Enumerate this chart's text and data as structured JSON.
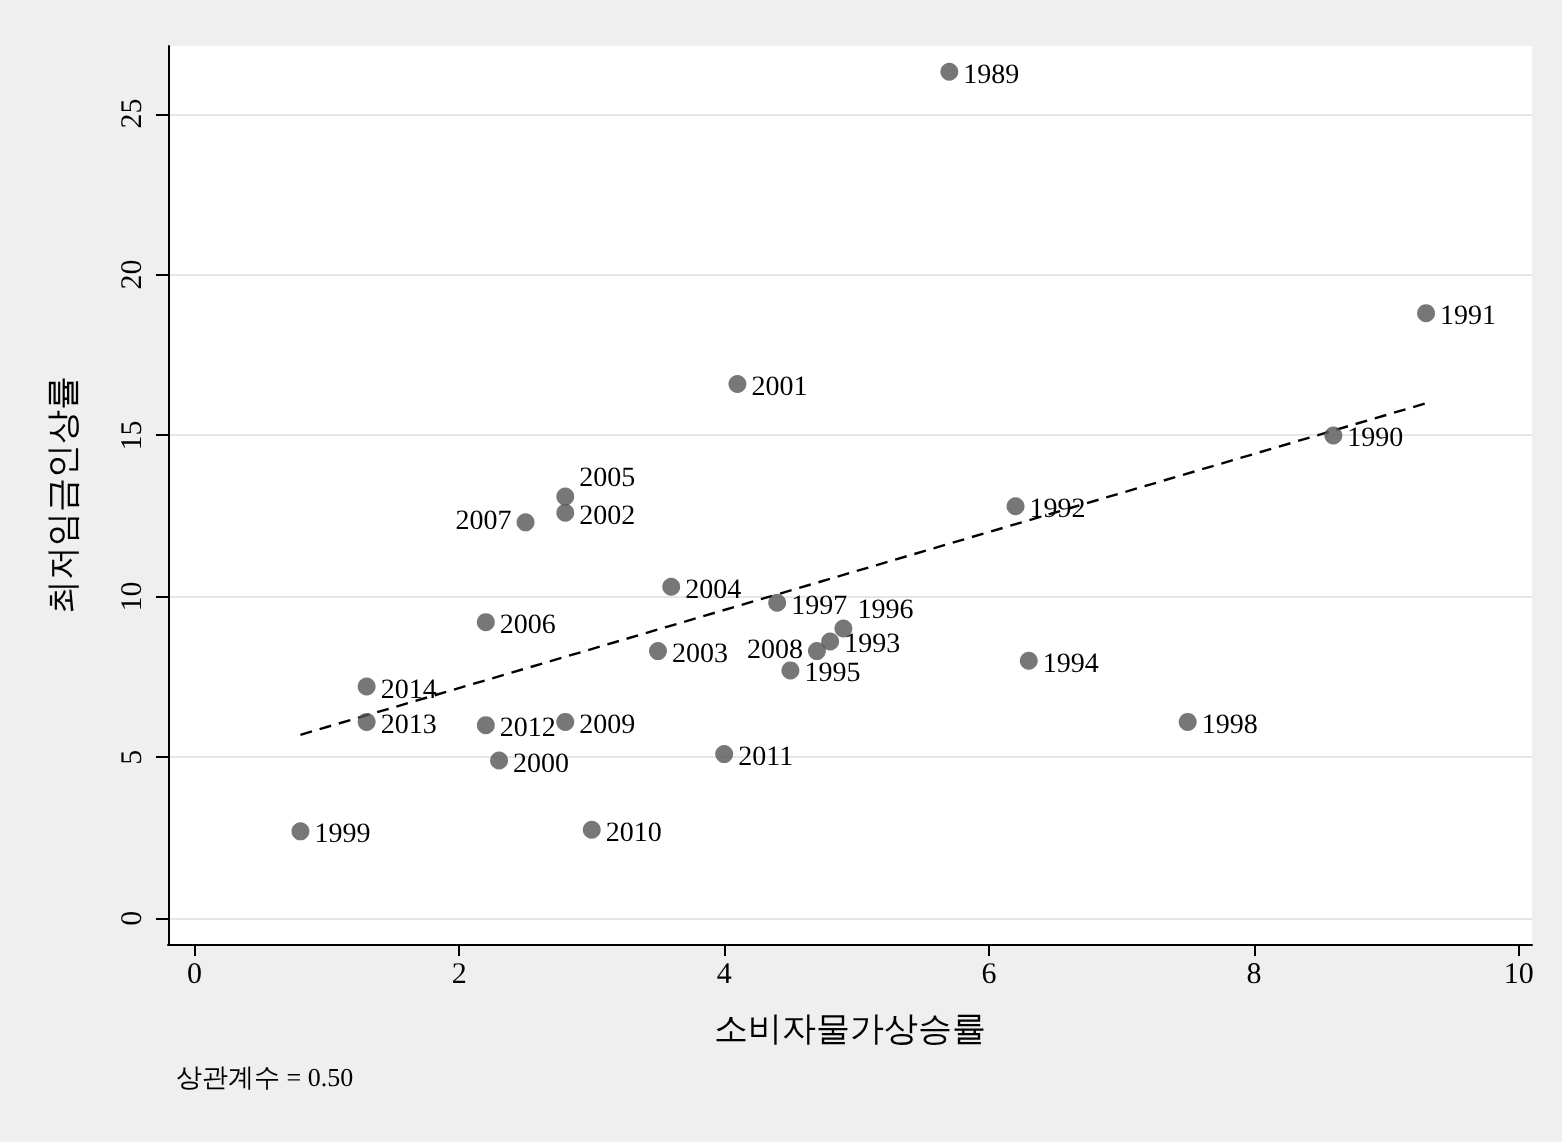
{
  "chart_data": {
    "type": "scatter",
    "xlabel": "소비자물가상승률",
    "ylabel": "최저임금인상률",
    "x": [
      5.7,
      8.6,
      9.3,
      6.2,
      4.8,
      6.3,
      4.5,
      4.9,
      4.4,
      7.5,
      0.8,
      2.3,
      4.1,
      2.8,
      3.5,
      3.6,
      2.8,
      2.2,
      2.5,
      4.7,
      2.8,
      3.0,
      4.0,
      2.2,
      1.3,
      1.3
    ],
    "series": [
      {
        "color": "#555555",
        "values": [
          26.3,
          15.0,
          18.8,
          12.8,
          8.6,
          8.0,
          7.7,
          9.0,
          9.8,
          6.1,
          2.7,
          4.9,
          16.6,
          12.6,
          8.3,
          10.3,
          13.1,
          9.2,
          12.3,
          8.3,
          6.1,
          2.75,
          5.1,
          6.0,
          6.1,
          7.2
        ]
      },
      {
        "type": "line",
        "color": "#000000",
        "line_style": "dashed",
        "marker": "none",
        "x": [
          0.8,
          9.3
        ],
        "values": [
          5.7,
          16.0
        ]
      }
    ],
    "annotations": [
      {
        "text": "1989",
        "x": 5.7,
        "y": 26.3
      },
      {
        "text": "1990",
        "x": 8.6,
        "y": 15.0
      },
      {
        "text": "1991",
        "x": 9.3,
        "y": 18.8
      },
      {
        "text": "1992",
        "x": 6.2,
        "y": 12.8
      },
      {
        "text": "1993",
        "x": 4.8,
        "y": 8.6
      },
      {
        "text": "1994",
        "x": 6.3,
        "y": 8.0
      },
      {
        "text": "1995",
        "x": 4.5,
        "y": 7.7
      },
      {
        "text": "1996",
        "x": 4.9,
        "y": 9.0
      },
      {
        "text": "1997",
        "x": 4.4,
        "y": 9.8
      },
      {
        "text": "1998",
        "x": 7.5,
        "y": 6.1
      },
      {
        "text": "1999",
        "x": 0.8,
        "y": 2.7
      },
      {
        "text": "2000",
        "x": 2.3,
        "y": 4.9
      },
      {
        "text": "2001",
        "x": 4.1,
        "y": 16.6
      },
      {
        "text": "2002",
        "x": 2.8,
        "y": 12.6
      },
      {
        "text": "2003",
        "x": 3.5,
        "y": 8.3
      },
      {
        "text": "2004",
        "x": 3.6,
        "y": 10.3
      },
      {
        "text": "2005",
        "x": 2.8,
        "y": 13.1
      },
      {
        "text": "2006",
        "x": 2.2,
        "y": 9.2
      },
      {
        "text": "2007",
        "x": 2.5,
        "y": 12.3
      },
      {
        "text": "2008",
        "x": 4.7,
        "y": 8.3
      },
      {
        "text": "2009",
        "x": 2.8,
        "y": 6.1
      },
      {
        "text": "2010",
        "x": 3.0,
        "y": 2.75
      },
      {
        "text": "2011",
        "x": 4.0,
        "y": 5.1
      },
      {
        "text": "2012",
        "x": 2.2,
        "y": 6.0
      },
      {
        "text": "2013",
        "x": 1.3,
        "y": 6.1
      },
      {
        "text": "2014",
        "x": 1.3,
        "y": 7.2
      },
      "상관계수 = 0.50"
    ],
    "xlim": [
      -0.2,
      10.1
    ],
    "xticks": [
      0,
      2,
      4,
      6,
      8,
      10
    ],
    "ylim": [
      -0.8,
      27.1
    ],
    "yticks": [
      0,
      5,
      10,
      15,
      20,
      25
    ],
    "grid": "y",
    "marker": "circle"
  }
}
